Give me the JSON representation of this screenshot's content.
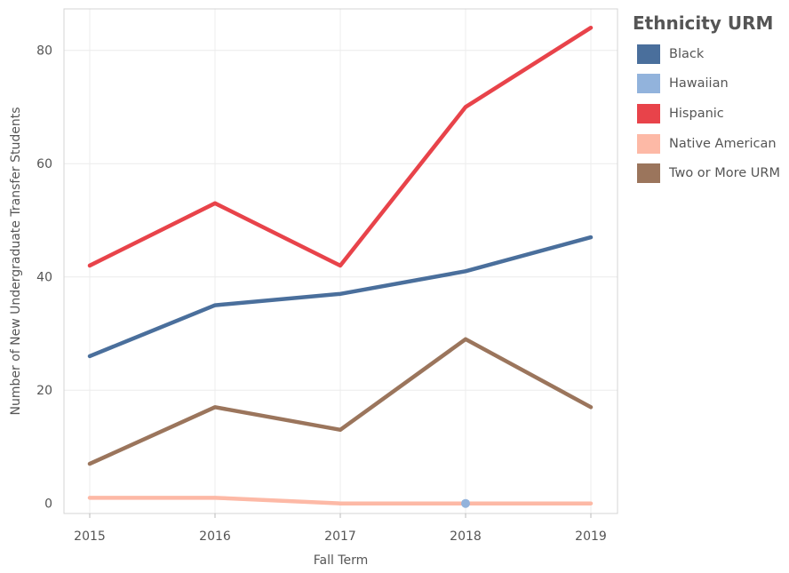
{
  "chart_data": {
    "type": "line",
    "x": [
      "2015",
      "2016",
      "2017",
      "2018",
      "2019"
    ],
    "xlabel": "Fall Term",
    "ylabel": "Number of New Undergraduate Transfer Students",
    "ylim": [
      0,
      88
    ],
    "yticks": [
      0,
      20,
      40,
      60,
      80
    ],
    "grid": true,
    "legend": {
      "title": "Ethnicity URM",
      "position": "right"
    },
    "series": [
      {
        "name": "Black",
        "color": "#4a6f9c",
        "values": [
          26,
          35,
          37,
          41,
          47
        ]
      },
      {
        "name": "Hawaiian",
        "color": "#92b3dc",
        "values": [
          null,
          null,
          null,
          0,
          null
        ]
      },
      {
        "name": "Hispanic",
        "color": "#e8434a",
        "values": [
          42,
          53,
          42,
          70,
          84
        ]
      },
      {
        "name": "Native American",
        "color": "#fdb9a6",
        "values": [
          1,
          1,
          0,
          0,
          0
        ]
      },
      {
        "name": "Two or More URM",
        "color": "#9b755c",
        "values": [
          7,
          17,
          13,
          29,
          17
        ]
      }
    ]
  }
}
